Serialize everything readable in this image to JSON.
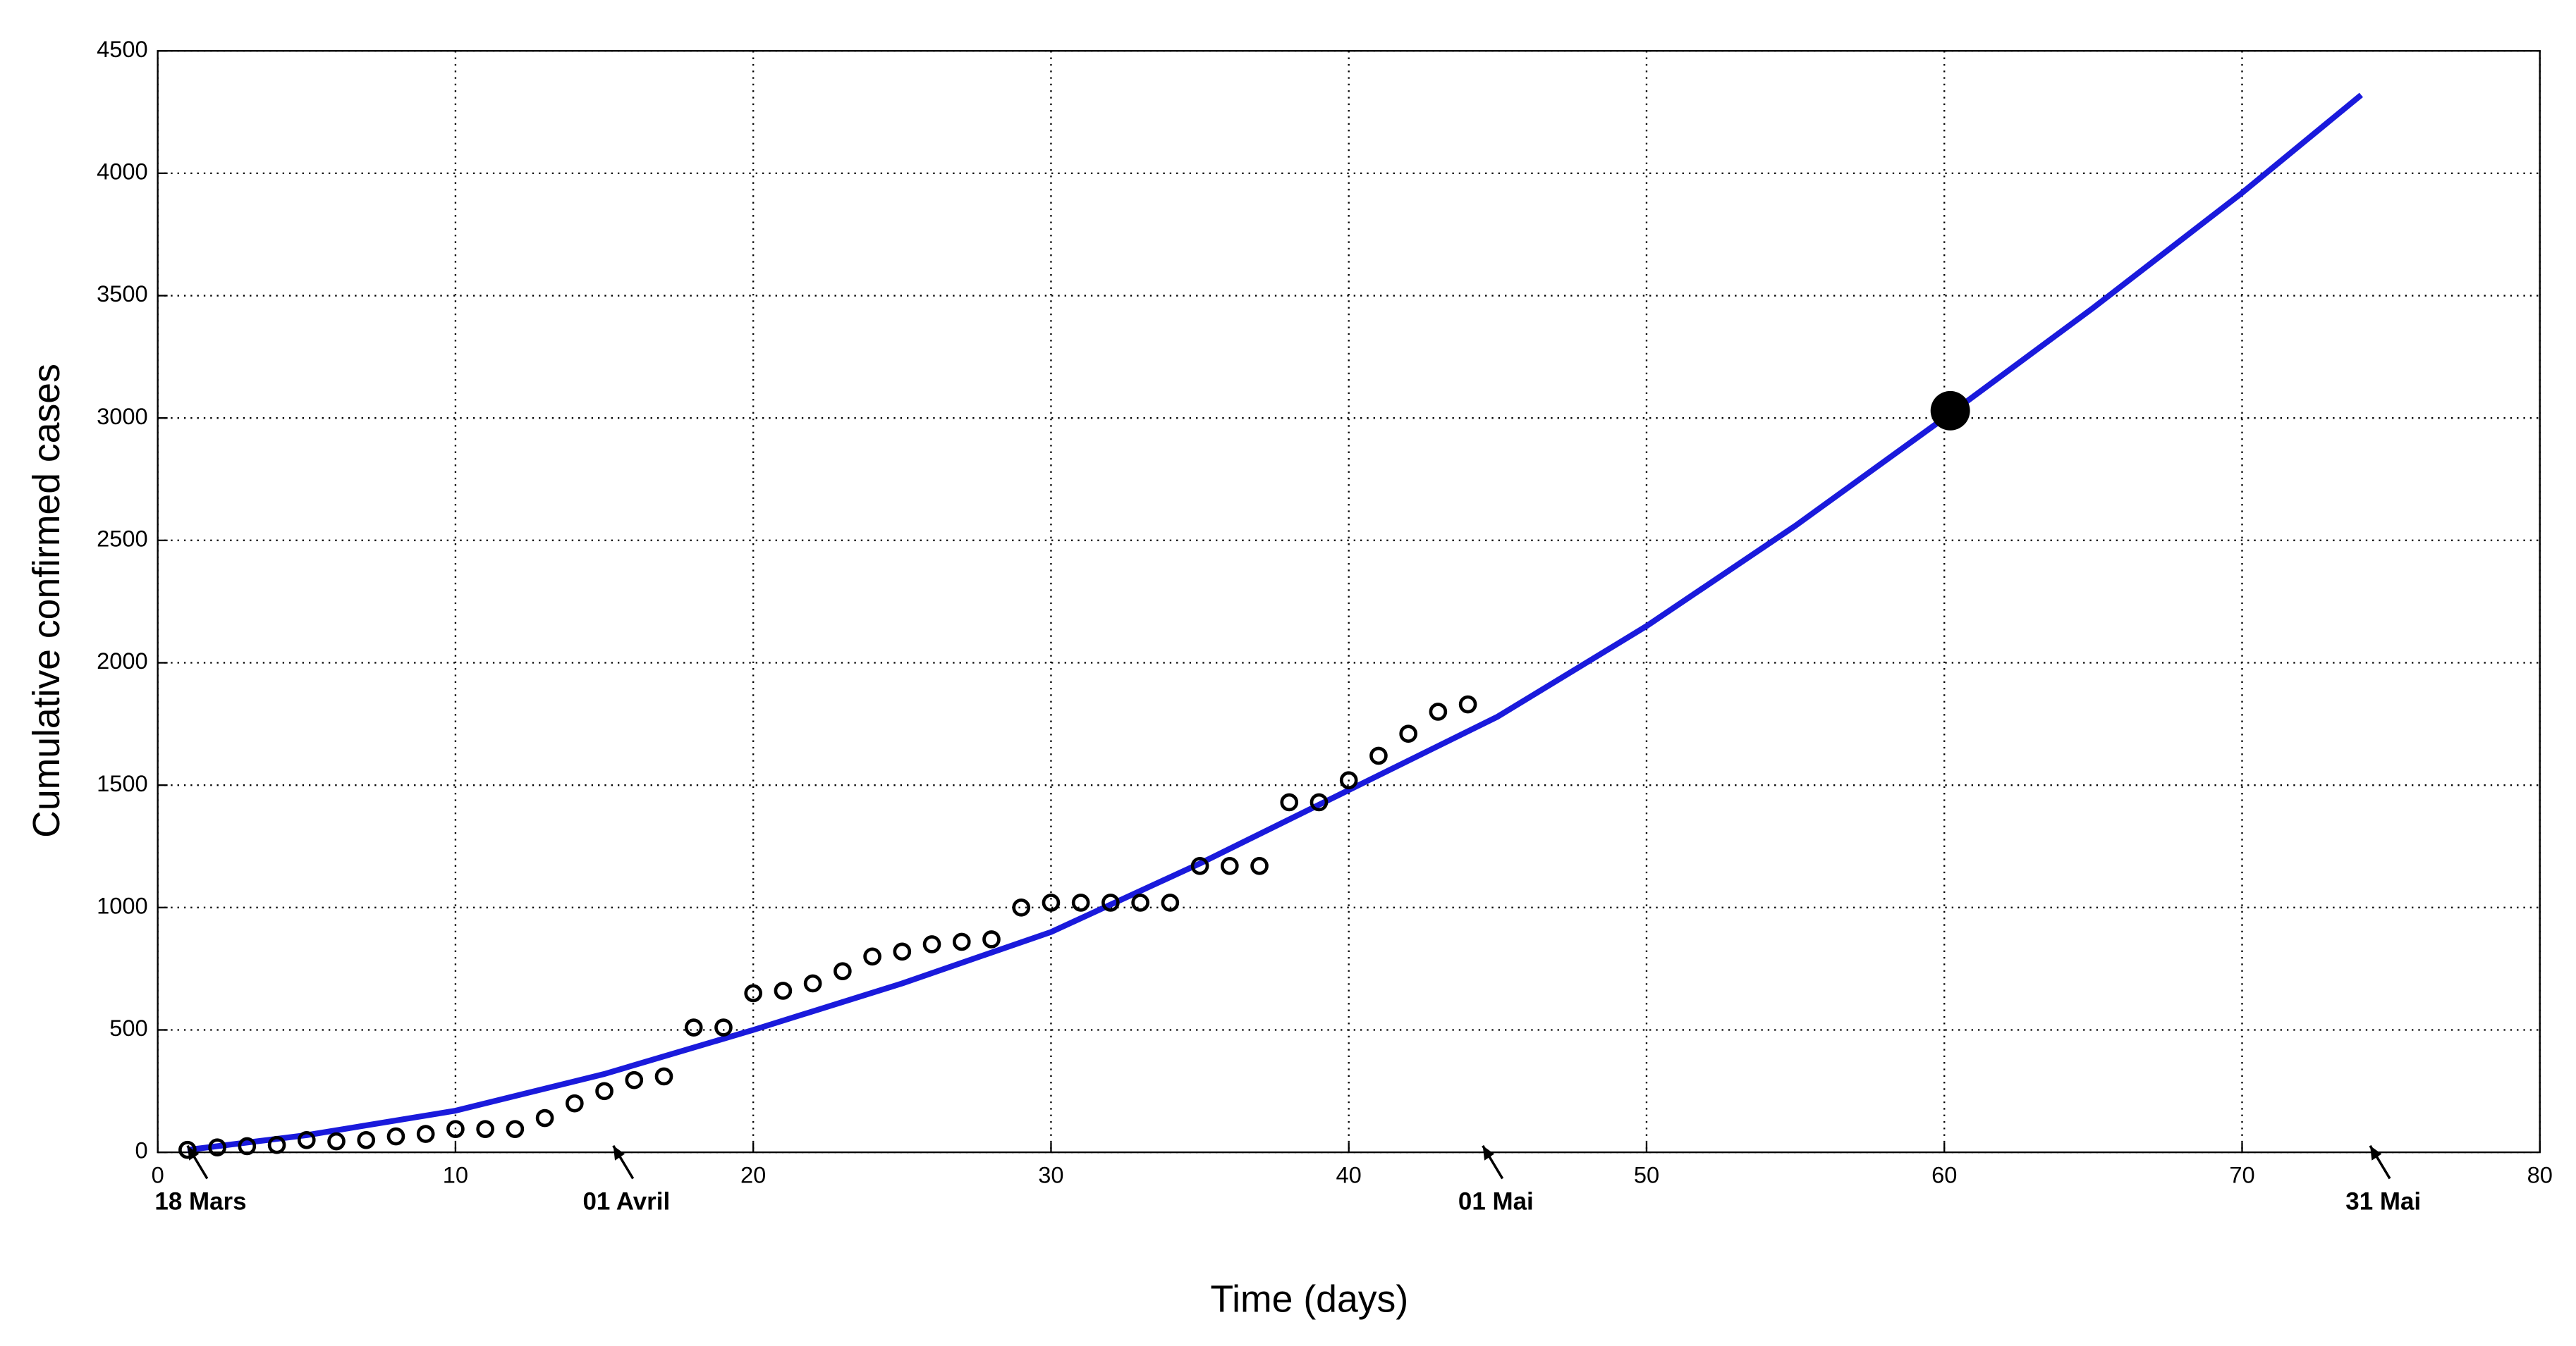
{
  "chart_data": {
    "type": "scatter",
    "xlabel": "Time (days)",
    "ylabel": "Cumulative confirmed cases",
    "xlim": [
      0,
      80
    ],
    "ylim": [
      0,
      4500
    ],
    "xticks": [
      0,
      10,
      20,
      30,
      40,
      50,
      60,
      70,
      80
    ],
    "yticks": [
      0,
      500,
      1000,
      1500,
      2000,
      2500,
      3000,
      3500,
      4000,
      4500
    ],
    "grid": true,
    "series": [
      {
        "style": "open-circle",
        "color": "#000000",
        "x": [
          1,
          2,
          3,
          4,
          5,
          6,
          7,
          8,
          9,
          10,
          11,
          12,
          13,
          14,
          15,
          16,
          17,
          18,
          19,
          20,
          21,
          22,
          23,
          24,
          25,
          26,
          27,
          28,
          29,
          30,
          31,
          32,
          33,
          34,
          35,
          36,
          37,
          38,
          39,
          40,
          41,
          42,
          43,
          44
        ],
        "values": [
          10,
          20,
          25,
          30,
          50,
          45,
          50,
          65,
          75,
          95,
          95,
          95,
          140,
          200,
          250,
          295,
          310,
          510,
          510,
          650,
          660,
          690,
          740,
          800,
          820,
          850,
          860,
          870,
          1000,
          1020,
          1020,
          1020,
          1020,
          1020,
          1170,
          1170,
          1170,
          1430,
          1430,
          1520,
          1620,
          1710,
          1800,
          1830
        ]
      },
      {
        "style": "line",
        "color": "#1a1adc",
        "x": [
          1,
          5,
          10,
          15,
          20,
          25,
          30,
          35,
          40,
          45,
          50,
          55,
          60,
          65,
          70,
          74
        ],
        "values": [
          10,
          70,
          170,
          320,
          500,
          690,
          900,
          1180,
          1480,
          1780,
          2150,
          2560,
          3000,
          3450,
          3920,
          4320
        ]
      },
      {
        "style": "filled-dot",
        "color": "#000000",
        "x": [
          60.2
        ],
        "values": [
          3030
        ]
      }
    ],
    "annotations": [
      {
        "text": "18 Mars",
        "x": 1,
        "y": 0
      },
      {
        "text": "01 Avril",
        "x": 15.3,
        "y": 0
      },
      {
        "text": "01 Mai",
        "x": 44.5,
        "y": 0
      },
      {
        "text": "31 Mai",
        "x": 74.3,
        "y": 0
      }
    ]
  }
}
